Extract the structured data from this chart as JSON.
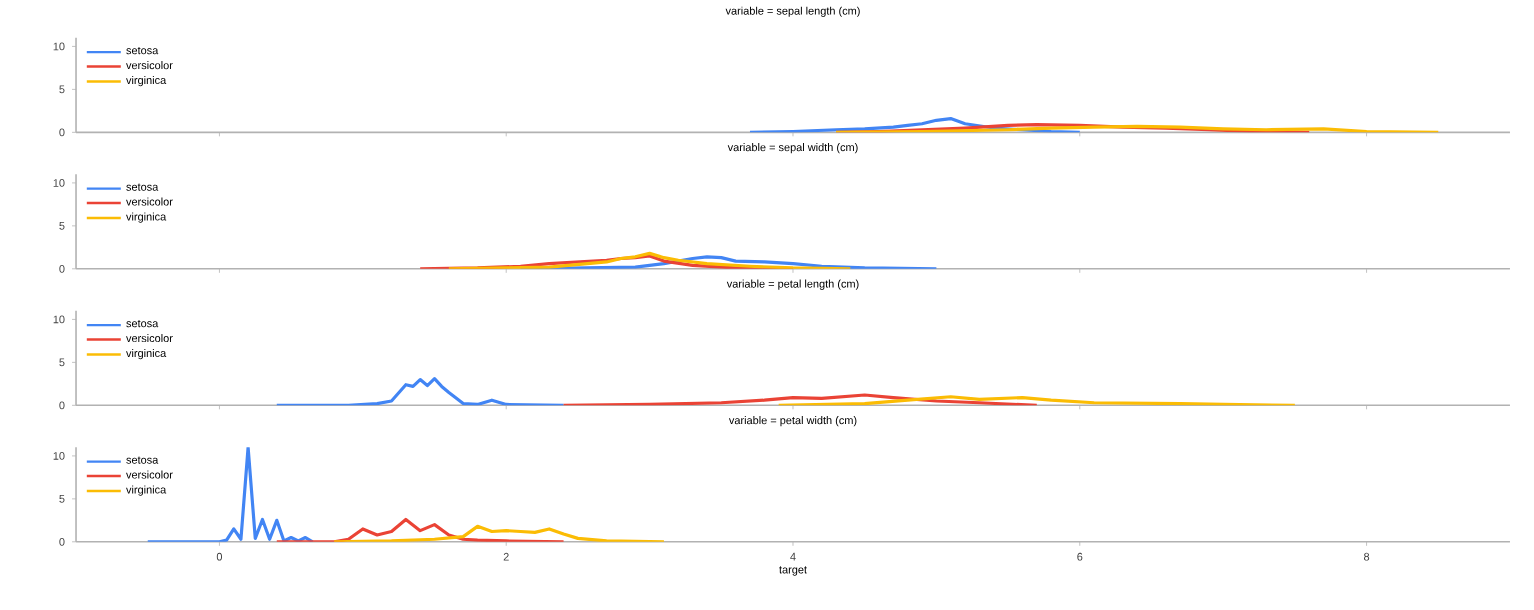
{
  "chart_data": [
    {
      "type": "line",
      "title": "variable = sepal length (cm)",
      "xlim": [
        -1,
        9
      ],
      "xticks": [
        0,
        2,
        4,
        6,
        8
      ],
      "ylim": [
        0,
        11
      ],
      "yticks": [
        0,
        5,
        10
      ],
      "tick_labels": "y",
      "legend": "top left",
      "series": [
        {
          "name": "setosa",
          "color": "#4285f4",
          "x": [
            3.7,
            4.0,
            4.3,
            4.5,
            4.7,
            4.8,
            4.9,
            5.0,
            5.1,
            5.2,
            5.4,
            5.6,
            5.8,
            6.0
          ],
          "values": [
            0,
            0.1,
            0.3,
            0.4,
            0.6,
            0.8,
            1.0,
            1.4,
            1.6,
            1.0,
            0.5,
            0.3,
            0.1,
            0
          ]
        },
        {
          "name": "versicolor",
          "color": "#ea4335",
          "x": [
            4.3,
            4.6,
            4.9,
            5.2,
            5.5,
            5.7,
            6.0,
            6.3,
            6.6,
            6.9,
            7.2,
            7.6
          ],
          "values": [
            0,
            0.1,
            0.3,
            0.5,
            0.8,
            0.9,
            0.8,
            0.6,
            0.5,
            0.3,
            0.1,
            0
          ]
        },
        {
          "name": "virginica",
          "color": "#fbbc04",
          "x": [
            4.3,
            4.9,
            5.5,
            5.8,
            6.1,
            6.4,
            6.7,
            7.0,
            7.3,
            7.7,
            8.0,
            8.5
          ],
          "values": [
            0,
            0.1,
            0.3,
            0.5,
            0.6,
            0.7,
            0.6,
            0.4,
            0.3,
            0.4,
            0.1,
            0
          ]
        }
      ]
    },
    {
      "type": "line",
      "title": "variable = sepal width (cm)",
      "xlim": [
        -1,
        9
      ],
      "xticks": [
        0,
        2,
        4,
        6,
        8
      ],
      "ylim": [
        0,
        11
      ],
      "yticks": [
        0,
        5,
        10
      ],
      "tick_labels": "y",
      "legend": "top left",
      "series": [
        {
          "name": "setosa",
          "color": "#4285f4",
          "x": [
            2.1,
            2.5,
            2.9,
            3.1,
            3.2,
            3.3,
            3.4,
            3.5,
            3.6,
            3.8,
            4.0,
            4.2,
            4.5,
            5.0
          ],
          "values": [
            0,
            0.1,
            0.2,
            0.6,
            0.9,
            1.2,
            1.4,
            1.3,
            0.9,
            0.8,
            0.6,
            0.3,
            0.1,
            0
          ]
        },
        {
          "name": "versicolor",
          "color": "#ea4335",
          "x": [
            1.4,
            1.8,
            2.1,
            2.3,
            2.5,
            2.7,
            2.8,
            2.9,
            3.0,
            3.1,
            3.3,
            3.6,
            4.0
          ],
          "values": [
            0,
            0.1,
            0.3,
            0.6,
            0.8,
            1.0,
            1.2,
            1.3,
            1.5,
            0.9,
            0.4,
            0.1,
            0
          ]
        },
        {
          "name": "virginica",
          "color": "#fbbc04",
          "x": [
            1.6,
            2.0,
            2.3,
            2.5,
            2.7,
            2.8,
            2.9,
            3.0,
            3.1,
            3.2,
            3.4,
            3.7,
            4.0,
            4.4
          ],
          "values": [
            0,
            0.1,
            0.2,
            0.5,
            0.8,
            1.2,
            1.4,
            1.8,
            1.3,
            1.0,
            0.6,
            0.3,
            0.1,
            0
          ]
        }
      ]
    },
    {
      "type": "line",
      "title": "variable = petal length (cm)",
      "xlim": [
        -1,
        9
      ],
      "xticks": [
        0,
        2,
        4,
        6,
        8
      ],
      "ylim": [
        0,
        11
      ],
      "yticks": [
        0,
        5,
        10
      ],
      "tick_labels": "y",
      "legend": "top left",
      "series": [
        {
          "name": "setosa",
          "color": "#4285f4",
          "x": [
            0.4,
            0.9,
            1.1,
            1.2,
            1.3,
            1.35,
            1.4,
            1.45,
            1.5,
            1.55,
            1.6,
            1.7,
            1.8,
            1.9,
            2.0,
            2.4
          ],
          "values": [
            0,
            0,
            0.2,
            0.5,
            2.4,
            2.2,
            3.0,
            2.3,
            3.1,
            2.2,
            1.5,
            0.2,
            0.1,
            0.6,
            0.1,
            0
          ]
        },
        {
          "name": "versicolor",
          "color": "#ea4335",
          "x": [
            2.4,
            3.0,
            3.5,
            3.8,
            4.0,
            4.2,
            4.5,
            4.7,
            5.0,
            5.3,
            5.7
          ],
          "values": [
            0,
            0.1,
            0.3,
            0.6,
            0.9,
            0.8,
            1.2,
            0.9,
            0.5,
            0.3,
            0
          ]
        },
        {
          "name": "virginica",
          "color": "#fbbc04",
          "x": [
            3.9,
            4.5,
            4.8,
            5.1,
            5.3,
            5.6,
            5.8,
            6.1,
            6.7,
            7.0,
            7.5
          ],
          "values": [
            0,
            0.2,
            0.6,
            1.0,
            0.7,
            0.9,
            0.6,
            0.3,
            0.2,
            0.1,
            0
          ]
        }
      ]
    },
    {
      "type": "line",
      "title": "variable = petal width (cm)",
      "xlabel": "target",
      "xlim": [
        -1,
        9
      ],
      "xticks": [
        0,
        2,
        4,
        6,
        8
      ],
      "ylim": [
        0,
        11
      ],
      "yticks": [
        0,
        5,
        10
      ],
      "legend": "top left",
      "series": [
        {
          "name": "setosa",
          "color": "#4285f4",
          "x": [
            -0.5,
            0.0,
            0.05,
            0.1,
            0.15,
            0.2,
            0.25,
            0.3,
            0.35,
            0.4,
            0.45,
            0.5,
            0.55,
            0.6,
            0.65
          ],
          "values": [
            0,
            0,
            0.2,
            1.5,
            0.3,
            11,
            0.4,
            2.6,
            0.3,
            2.5,
            0.1,
            0.5,
            0.1,
            0.5,
            0
          ]
        },
        {
          "name": "versicolor",
          "color": "#ea4335",
          "x": [
            0.4,
            0.8,
            0.9,
            1.0,
            1.1,
            1.2,
            1.3,
            1.4,
            1.5,
            1.6,
            1.7,
            1.8,
            2.0,
            2.4
          ],
          "values": [
            0,
            0,
            0.3,
            1.5,
            0.8,
            1.2,
            2.6,
            1.3,
            2.0,
            0.8,
            0.3,
            0.2,
            0.1,
            0
          ]
        },
        {
          "name": "virginica",
          "color": "#fbbc04",
          "x": [
            0.8,
            1.2,
            1.5,
            1.7,
            1.8,
            1.9,
            2.0,
            2.1,
            2.2,
            2.3,
            2.4,
            2.5,
            2.7,
            3.1
          ],
          "values": [
            0,
            0.1,
            0.3,
            0.6,
            1.8,
            1.2,
            1.3,
            1.2,
            1.1,
            1.5,
            0.9,
            0.4,
            0.1,
            0
          ]
        }
      ]
    }
  ]
}
